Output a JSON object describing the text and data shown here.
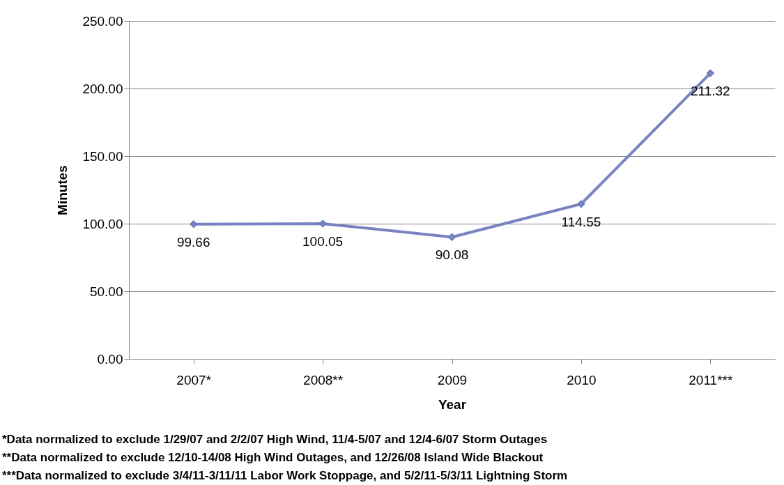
{
  "chart_data": {
    "type": "line",
    "xlabel": "Year",
    "ylabel": "Minutes",
    "categories": [
      "2007*",
      "2008**",
      "2009",
      "2010",
      "2011***"
    ],
    "series": [
      {
        "color": "#7b82c2",
        "values": [
          99.66,
          100.05,
          90.08,
          114.55,
          211.32
        ]
      }
    ],
    "ylim": [
      0,
      250
    ],
    "yticks": [
      {
        "value": 0,
        "label": "0.00"
      },
      {
        "value": 50,
        "label": "50.00"
      },
      {
        "value": 100,
        "label": "100.00"
      },
      {
        "value": 150,
        "label": "150.00"
      },
      {
        "value": 200,
        "label": "200.00"
      },
      {
        "value": 250,
        "label": "250.00"
      }
    ],
    "grid": "y",
    "legend": false,
    "marker": "diamond",
    "line_style": "solid",
    "data_labels": true,
    "annotations": [
      "*Data normalized to exclude 1/29/07 and 2/2/07 High Wind, 11/4-5/07 and 12/4-6/07 Storm Outages",
      "**Data normalized to exclude 12/10-14/08 High Wind Outages, and 12/26/08 Island Wide Blackout",
      "***Data normalized to exclude 3/4/11-3/11/11 Labor Work Stoppage, and 5/2/11-5/3/11 Lightning Storm"
    ]
  }
}
